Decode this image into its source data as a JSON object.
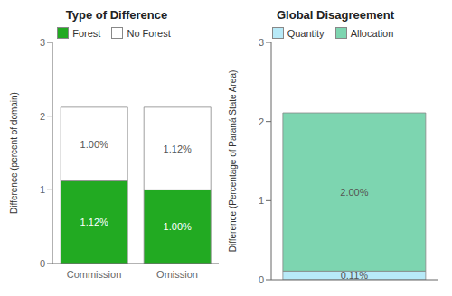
{
  "chart_data": [
    {
      "type": "bar",
      "title": "Type of Difference",
      "y_label": "Difference (percent of domain)",
      "categories": [
        "Commission",
        "Omission"
      ],
      "stacked": true,
      "data_labels": true,
      "legend": "top",
      "ylim": [
        0,
        3
      ],
      "yticks": [
        0,
        1,
        2,
        3
      ],
      "series": [
        {
          "name": "Forest",
          "color": "#22aa22",
          "values": [
            1.12,
            1.0
          ],
          "value_labels": [
            "1.12%",
            "1.00%"
          ]
        },
        {
          "name": "No Forest",
          "color": "#ffffff",
          "values": [
            1.0,
            1.12
          ],
          "value_labels": [
            "1.00%",
            "1.12%"
          ]
        }
      ]
    },
    {
      "type": "bar",
      "title": "Global Disagreement",
      "y_label": "Difference (Percentage of Paraná State Area)",
      "categories": [
        null
      ],
      "stacked": true,
      "data_labels": true,
      "legend": "top",
      "tick_labels": "y",
      "ylim": [
        0,
        3
      ],
      "yticks": [
        0,
        1,
        2,
        3
      ],
      "series": [
        {
          "name": "Quantity",
          "color": "#b8eaf8",
          "values": [
            0.11
          ],
          "value_labels": [
            "0.11%"
          ]
        },
        {
          "name": "Allocation",
          "color": "#7dd5b0",
          "values": [
            2.0
          ],
          "value_labels": [
            "2.00%"
          ]
        }
      ]
    }
  ]
}
